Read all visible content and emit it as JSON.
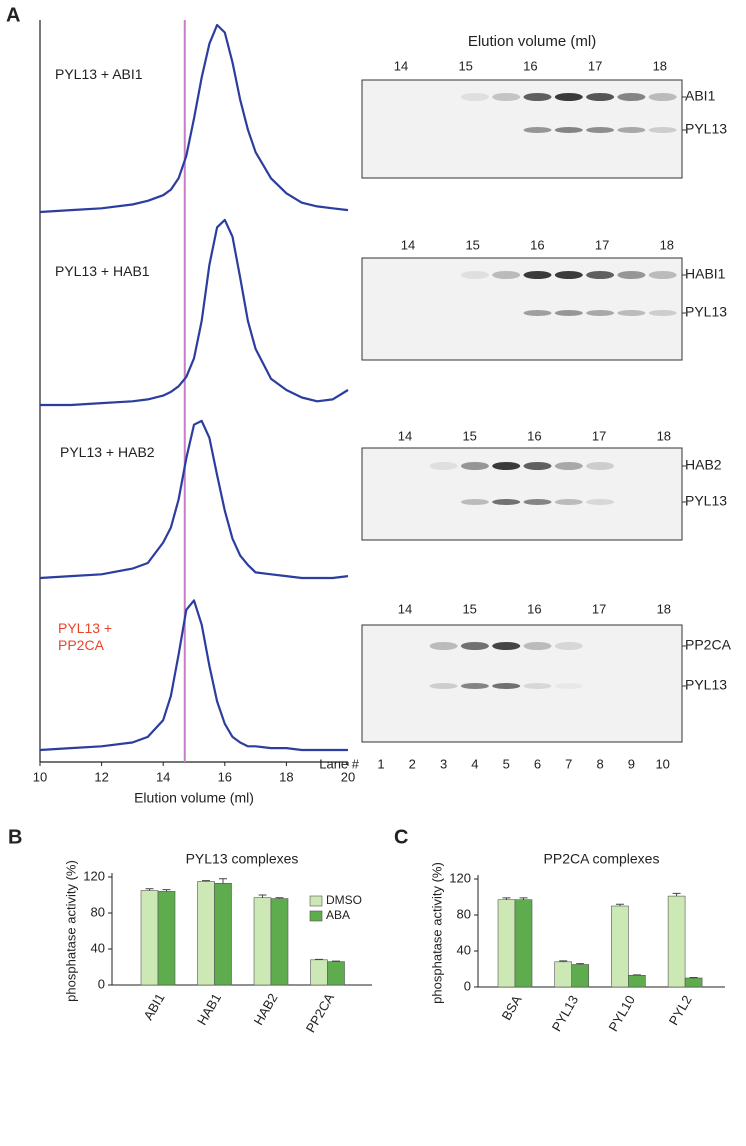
{
  "chart_data": [
    {
      "type": "line",
      "panel": "A",
      "xlabel": "Elution volume (ml)",
      "x": [
        10,
        11,
        12,
        13,
        13.5,
        14,
        14.25,
        14.5,
        14.75,
        15,
        15.25,
        15.5,
        15.75,
        16,
        16.25,
        16.5,
        16.75,
        17,
        17.5,
        18,
        18.5,
        19,
        19.5,
        20
      ],
      "xlim": [
        10,
        20
      ],
      "xticks": [
        10,
        12,
        14,
        16,
        18,
        20
      ],
      "ylim": [
        0,
        100
      ],
      "reference_line": 14.7,
      "reference_color": "#c77dc7",
      "series": [
        {
          "name": "PYL13 + ABI1",
          "color": "#2b3d9e",
          "label_color": "#222222",
          "values": [
            0,
            1,
            2,
            4,
            6,
            9,
            12,
            18,
            30,
            50,
            72,
            90,
            100,
            96,
            80,
            60,
            44,
            32,
            18,
            10,
            5,
            3,
            2,
            1
          ]
        },
        {
          "name": "PYL13 + HAB1",
          "color": "#2b3d9e",
          "label_color": "#222222",
          "values": [
            0,
            0,
            1,
            2,
            3,
            5,
            7,
            10,
            15,
            25,
            45,
            75,
            95,
            99,
            90,
            68,
            45,
            30,
            14,
            8,
            4,
            2,
            3,
            8
          ]
        },
        {
          "name": "PYL13 + HAB2",
          "color": "#2b3d9e",
          "label_color": "#222222",
          "values": [
            0,
            1,
            2,
            5,
            8,
            19,
            27,
            42,
            64,
            82,
            84,
            75,
            55,
            36,
            21,
            12,
            7,
            3,
            2,
            1,
            0,
            0,
            0,
            1
          ]
        },
        {
          "name": "PYL13 + PP2CA",
          "color": "#2b3d9e",
          "label_color": "#e8462a",
          "values": [
            0,
            1,
            2,
            4,
            7,
            16,
            29,
            51,
            75,
            80,
            67,
            45,
            26,
            14,
            7,
            4,
            2,
            2,
            1,
            1,
            0,
            0,
            0,
            0
          ]
        }
      ]
    },
    {
      "type": "gel",
      "title": "Elution volume (ml)",
      "xticks": [
        14,
        15,
        16,
        17,
        18
      ],
      "rows": [
        {
          "name": "ABI1",
          "values": [
            0,
            0,
            0,
            0.1,
            0.25,
            0.8,
            1,
            0.85,
            0.6,
            0.3
          ]
        },
        {
          "name": "PYL13",
          "values": [
            0,
            0,
            0,
            0,
            0,
            0.5,
            0.6,
            0.55,
            0.4,
            0.2
          ]
        }
      ]
    },
    {
      "type": "gel",
      "xticks": [
        14,
        15,
        16,
        17,
        18
      ],
      "rows": [
        {
          "name": "HABI1",
          "values": [
            0,
            0,
            0,
            0.1,
            0.3,
            1,
            1,
            0.8,
            0.5,
            0.3
          ]
        },
        {
          "name": "PYL13",
          "values": [
            0,
            0,
            0,
            0,
            0,
            0.45,
            0.5,
            0.4,
            0.3,
            0.2
          ]
        }
      ]
    },
    {
      "type": "gel",
      "xticks": [
        14,
        15,
        16,
        17,
        18
      ],
      "rows": [
        {
          "name": "HAB2",
          "values": [
            0,
            0,
            0.1,
            0.5,
            1,
            0.8,
            0.4,
            0.2,
            0,
            0
          ]
        },
        {
          "name": "PYL13",
          "values": [
            0,
            0,
            0,
            0.3,
            0.7,
            0.6,
            0.3,
            0.15,
            0,
            0
          ]
        }
      ]
    },
    {
      "type": "gel",
      "xticks": [
        14,
        15,
        16,
        17,
        18
      ],
      "lane_label": "Lane #",
      "lanes": [
        1,
        2,
        3,
        4,
        5,
        6,
        7,
        8,
        9,
        10
      ],
      "rows": [
        {
          "name": "PP2CA",
          "values": [
            0,
            0,
            0.3,
            0.7,
            0.95,
            0.3,
            0.15,
            0,
            0,
            0
          ]
        },
        {
          "name": "PYL13",
          "values": [
            0,
            0,
            0.2,
            0.6,
            0.7,
            0.15,
            0.05,
            0,
            0,
            0
          ]
        }
      ]
    },
    {
      "type": "bar",
      "panel": "B",
      "title": "PYL13 complexes",
      "ylabel": "phosphatase activity (%)",
      "categories": [
        "ABI1",
        "HAB1",
        "HAB2",
        "PP2CA"
      ],
      "ylim": [
        0,
        120
      ],
      "yticks": [
        0,
        40,
        80,
        120
      ],
      "legend": "upper right",
      "series": [
        {
          "name": "DMSO",
          "color": "#cce8b5",
          "values": [
            105,
            115,
            97,
            28
          ],
          "errors": [
            2,
            1,
            3,
            0.5
          ]
        },
        {
          "name": "ABA",
          "color": "#5fac4e",
          "values": [
            104,
            113,
            96,
            26
          ],
          "errors": [
            2,
            5,
            1,
            0.5
          ]
        }
      ]
    },
    {
      "type": "bar",
      "panel": "C",
      "title": "PP2CA complexes",
      "ylabel": "phosphatase activity (%)",
      "categories": [
        "BSA",
        "PYL13",
        "PYL10",
        "PYL2"
      ],
      "ylim": [
        0,
        120
      ],
      "yticks": [
        0,
        40,
        80,
        120
      ],
      "series": [
        {
          "color": "#cce8b5",
          "values": [
            97,
            28,
            90,
            101
          ],
          "errors": [
            2,
            1,
            2,
            3
          ]
        },
        {
          "color": "#5fac4e",
          "values": [
            97,
            25,
            13,
            10
          ],
          "errors": [
            2,
            1,
            0.5,
            0.5
          ]
        }
      ]
    }
  ]
}
